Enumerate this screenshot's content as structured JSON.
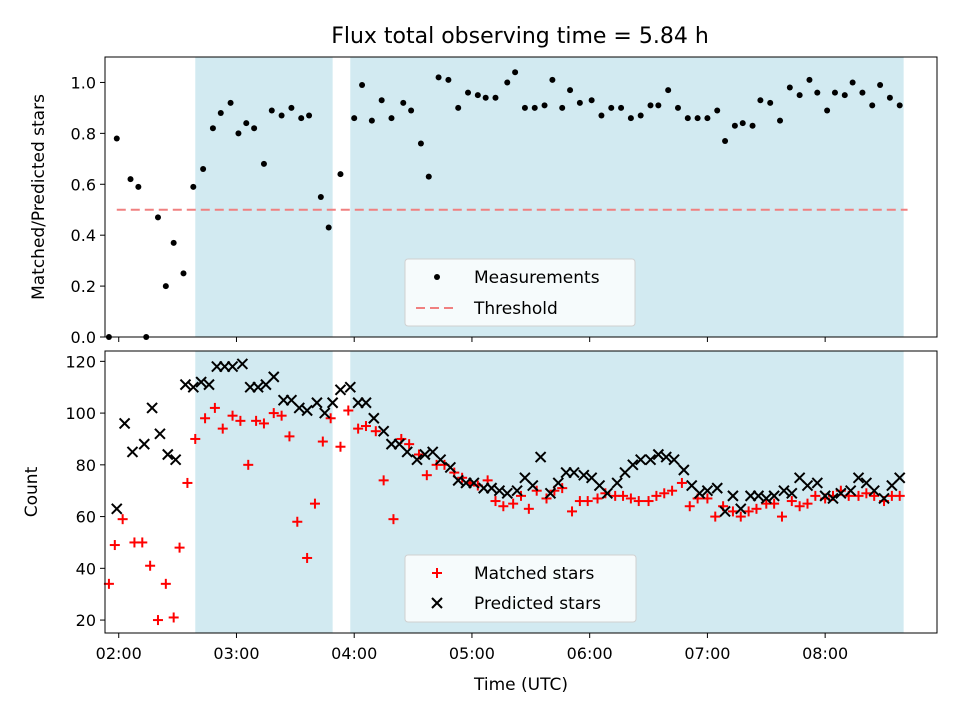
{
  "colors": {
    "band": "#add8e6",
    "measurement": "#000000",
    "threshold": "#f08080",
    "matched": "#ff0000",
    "predicted": "#000000"
  },
  "chart_data": [
    {
      "type": "scatter",
      "title": "Flux total observing time = 5.84 h",
      "ylabel": "Matched/Predicted stars",
      "xlim": [
        "01:53",
        "08:57"
      ],
      "ylim": [
        0,
        1.1
      ],
      "yticks": [
        0.0,
        0.2,
        0.4,
        0.6,
        0.8,
        1.0
      ],
      "ytick_labels": [
        "0.0",
        "0.2",
        "0.4",
        "0.6",
        "0.8",
        "1.0"
      ],
      "legend_position": "lower-center",
      "legend": [
        "Measurements",
        "Threshold"
      ],
      "threshold": {
        "y": 0.5,
        "x_start": "01:59",
        "x_end": "08:42"
      },
      "bands": [
        {
          "start": "02:39",
          "end": "03:49"
        },
        {
          "start": "03:58",
          "end": "08:40"
        }
      ],
      "x": [
        "01:55",
        "01:59",
        "02:06",
        "02:10",
        "02:14",
        "02:20",
        "02:24",
        "02:28",
        "02:33",
        "02:38",
        "02:43",
        "02:48",
        "02:52",
        "02:57",
        "03:01",
        "03:05",
        "03:09",
        "03:14",
        "03:18",
        "03:23",
        "03:28",
        "03:33",
        "03:37",
        "03:43",
        "03:47",
        "03:53",
        "04:00",
        "04:04",
        "04:09",
        "04:14",
        "04:19",
        "04:25",
        "04:29",
        "04:34",
        "04:38",
        "04:43",
        "04:48",
        "04:53",
        "04:58",
        "05:03",
        "05:07",
        "05:12",
        "05:18",
        "05:22",
        "05:27",
        "05:32",
        "05:37",
        "05:41",
        "05:46",
        "05:50",
        "05:55",
        "06:01",
        "06:06",
        "06:11",
        "06:16",
        "06:21",
        "06:26",
        "06:31",
        "06:35",
        "06:40",
        "06:45",
        "06:50",
        "06:55",
        "07:00",
        "07:05",
        "07:09",
        "07:14",
        "07:18",
        "07:23",
        "07:27",
        "07:32",
        "07:37",
        "07:42",
        "07:47",
        "07:52",
        "07:56",
        "08:01",
        "08:05",
        "08:10",
        "08:14",
        "08:19",
        "08:24",
        "08:28",
        "08:33",
        "08:38"
      ],
      "series": [
        {
          "name": "Measurements",
          "y": [
            0.0,
            0.78,
            0.62,
            0.59,
            0.0,
            0.47,
            0.2,
            0.37,
            0.25,
            0.59,
            0.66,
            0.82,
            0.88,
            0.92,
            0.8,
            0.84,
            0.82,
            0.68,
            0.89,
            0.87,
            0.9,
            0.86,
            0.87,
            0.55,
            0.43,
            0.64,
            0.86,
            0.99,
            0.85,
            0.93,
            0.86,
            0.92,
            0.89,
            0.76,
            0.63,
            1.02,
            1.01,
            0.9,
            0.96,
            0.95,
            0.94,
            0.94,
            1.0,
            1.04,
            0.9,
            0.9,
            0.91,
            1.01,
            0.9,
            0.97,
            0.92,
            0.93,
            0.87,
            0.9,
            0.9,
            0.86,
            0.87,
            0.91,
            0.91,
            0.97,
            0.9,
            0.86,
            0.86,
            0.86,
            0.89,
            0.77,
            0.83,
            0.84,
            0.83,
            0.93,
            0.92,
            0.85,
            0.98,
            0.95,
            1.01,
            0.96,
            0.89,
            0.96,
            0.95,
            1.0,
            0.96,
            0.91,
            0.99,
            0.94,
            0.91
          ]
        }
      ]
    },
    {
      "type": "scatter",
      "xlabel": "Time (UTC)",
      "ylabel": "Count",
      "xlim": [
        "01:53",
        "08:57"
      ],
      "ylim": [
        15,
        124
      ],
      "yticks": [
        20,
        40,
        60,
        80,
        100,
        120
      ],
      "ytick_labels": [
        "20",
        "40",
        "60",
        "80",
        "100",
        "120"
      ],
      "xticks": [
        "02:00",
        "03:00",
        "04:00",
        "05:00",
        "06:00",
        "07:00",
        "08:00"
      ],
      "legend_position": "lower-center",
      "legend": [
        "Matched stars",
        "Predicted stars"
      ],
      "bands": [
        {
          "start": "02:39",
          "end": "03:49"
        },
        {
          "start": "03:58",
          "end": "08:40"
        }
      ],
      "series": [
        {
          "name": "Matched stars",
          "x": [
            "01:55",
            "01:58",
            "02:02",
            "02:08",
            "02:12",
            "02:16",
            "02:20",
            "02:24",
            "02:28",
            "02:31",
            "02:35",
            "02:39",
            "02:44",
            "02:49",
            "02:53",
            "02:58",
            "03:02",
            "03:06",
            "03:10",
            "03:14",
            "03:19",
            "03:23",
            "03:27",
            "03:31",
            "03:36",
            "03:40",
            "03:44",
            "03:48",
            "03:53",
            "03:57",
            "04:02",
            "04:06",
            "04:11",
            "04:15",
            "04:20",
            "04:24",
            "04:28",
            "04:33",
            "04:37",
            "04:42",
            "04:46",
            "04:51",
            "04:55",
            "04:59",
            "05:03",
            "05:08",
            "05:12",
            "05:16",
            "05:21",
            "05:25",
            "05:29",
            "05:33",
            "05:38",
            "05:42",
            "05:46",
            "05:51",
            "05:55",
            "05:59",
            "06:04",
            "06:08",
            "06:13",
            "06:17",
            "06:21",
            "06:25",
            "06:30",
            "06:34",
            "06:38",
            "06:42",
            "06:47",
            "06:51",
            "06:55",
            "07:00",
            "07:04",
            "07:08",
            "07:13",
            "07:17",
            "07:21",
            "07:25",
            "07:30",
            "07:34",
            "07:38",
            "07:43",
            "07:47",
            "07:51",
            "07:55",
            "08:00",
            "08:04",
            "08:08",
            "08:12",
            "08:17",
            "08:21",
            "08:25",
            "08:30",
            "08:34",
            "08:38"
          ],
          "y": [
            34,
            49,
            59,
            50,
            50,
            41,
            20,
            34,
            21,
            48,
            73,
            90,
            98,
            102,
            94,
            99,
            97,
            80,
            97,
            96,
            100,
            99,
            91,
            58,
            44,
            65,
            89,
            98,
            87,
            101,
            94,
            95,
            93,
            74,
            59,
            90,
            88,
            84,
            76,
            80,
            80,
            77,
            75,
            73,
            72,
            74,
            66,
            64,
            65,
            68,
            63,
            70,
            67,
            70,
            71,
            62,
            66,
            66,
            67,
            69,
            68,
            68,
            67,
            66,
            66,
            68,
            69,
            70,
            73,
            64,
            67,
            67,
            60,
            64,
            62,
            60,
            62,
            63,
            65,
            65,
            60,
            66,
            64,
            65,
            68,
            67,
            68,
            70,
            68,
            68,
            69,
            68,
            66,
            68,
            68
          ]
        },
        {
          "name": "Predicted stars",
          "x": [
            "01:59",
            "02:03",
            "02:07",
            "02:13",
            "02:17",
            "02:21",
            "02:25",
            "02:29",
            "02:34",
            "02:38",
            "02:42",
            "02:46",
            "02:50",
            "02:54",
            "02:58",
            "03:03",
            "03:07",
            "03:11",
            "03:15",
            "03:19",
            "03:24",
            "03:28",
            "03:32",
            "03:36",
            "03:41",
            "03:45",
            "03:49",
            "03:53",
            "03:58",
            "04:02",
            "04:06",
            "04:10",
            "04:15",
            "04:19",
            "04:23",
            "04:27",
            "04:32",
            "04:36",
            "04:40",
            "04:44",
            "04:49",
            "04:53",
            "04:57",
            "05:01",
            "05:06",
            "05:10",
            "05:14",
            "05:18",
            "05:23",
            "05:27",
            "05:31",
            "05:35",
            "05:40",
            "05:44",
            "05:48",
            "05:52",
            "05:57",
            "06:01",
            "06:05",
            "06:09",
            "06:14",
            "06:18",
            "06:22",
            "06:26",
            "06:31",
            "06:35",
            "06:39",
            "06:43",
            "06:48",
            "06:52",
            "06:56",
            "07:00",
            "07:05",
            "07:09",
            "07:13",
            "07:17",
            "07:22",
            "07:26",
            "07:30",
            "07:34",
            "07:39",
            "07:43",
            "07:47",
            "07:51",
            "07:56",
            "08:00",
            "08:04",
            "08:08",
            "08:13",
            "08:17",
            "08:21",
            "08:25",
            "08:30",
            "08:34",
            "08:38"
          ],
          "y": [
            63,
            96,
            85,
            88,
            102,
            92,
            84,
            82,
            111,
            110,
            112,
            111,
            118,
            118,
            118,
            119,
            110,
            110,
            111,
            114,
            105,
            105,
            102,
            101,
            104,
            100,
            104,
            109,
            110,
            104,
            104,
            98,
            93,
            88,
            88,
            85,
            82,
            84,
            85,
            82,
            79,
            74,
            73,
            73,
            71,
            71,
            70,
            69,
            70,
            75,
            72,
            83,
            69,
            73,
            77,
            77,
            76,
            75,
            72,
            69,
            73,
            77,
            80,
            82,
            82,
            84,
            83,
            82,
            78,
            72,
            69,
            70,
            71,
            62,
            68,
            63,
            68,
            68,
            67,
            68,
            70,
            69,
            75,
            72,
            73,
            68,
            67,
            69,
            70,
            75,
            73,
            70,
            67,
            72,
            75
          ]
        }
      ]
    }
  ]
}
